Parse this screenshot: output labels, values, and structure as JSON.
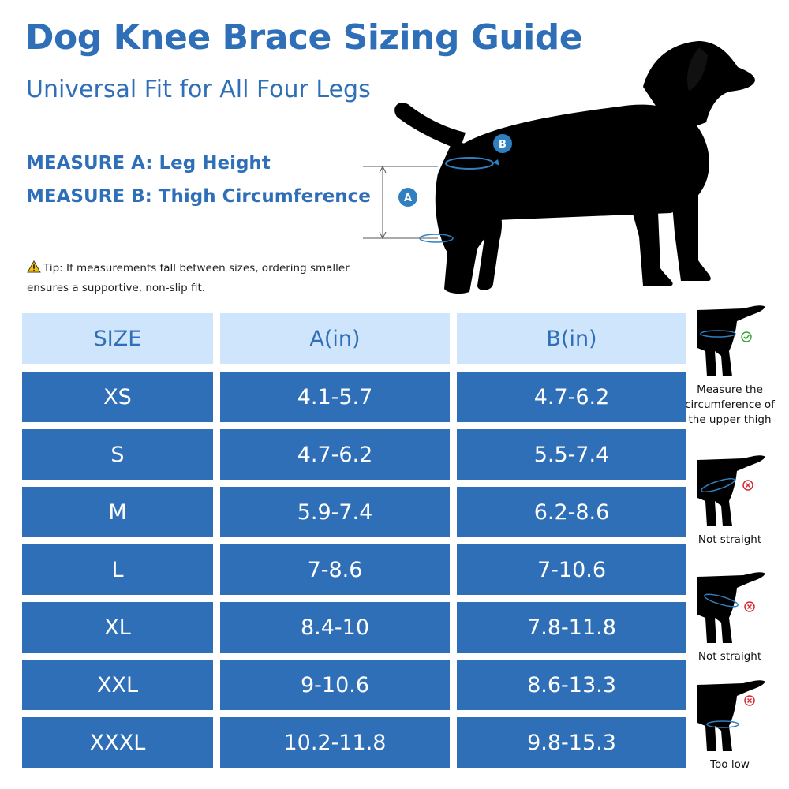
{
  "header": {
    "title": "Dog Knee Brace Sizing Guide",
    "subtitle": "Universal Fit for All Four Legs",
    "measure_a": "MEASURE A: Leg Height",
    "measure_b": "MEASURE B: Thigh Circumference"
  },
  "diagram": {
    "marker_a": "A",
    "marker_b": "B"
  },
  "tip": {
    "label": "Tip:",
    "text": " If measurements fall between sizes, ordering smaller ensures a supportive, non-slip fit."
  },
  "table": {
    "headers": [
      "SIZE",
      "A(in)",
      "B(in)"
    ],
    "rows": [
      {
        "size": "XS",
        "a": "4.1-5.7",
        "b": "4.7-6.2"
      },
      {
        "size": "S",
        "a": "4.7-6.2",
        "b": "5.5-7.4"
      },
      {
        "size": "M",
        "a": "5.9-7.4",
        "b": "6.2-8.6"
      },
      {
        "size": "L",
        "a": "7-8.6",
        "b": "7-10.6"
      },
      {
        "size": "XL",
        "a": "8.4-10",
        "b": "7.8-11.8"
      },
      {
        "size": "XXL",
        "a": "9-10.6",
        "b": "8.6-13.3"
      },
      {
        "size": "XXXL",
        "a": "10.2-11.8",
        "b": "9.8-15.3"
      }
    ]
  },
  "examples": [
    {
      "caption": "Measure the circumference of the upper thigh",
      "status": "correct"
    },
    {
      "caption": "Not straight",
      "status": "wrong"
    },
    {
      "caption": "Not straight",
      "status": "wrong"
    },
    {
      "caption": "Too low",
      "status": "wrong"
    }
  ],
  "colors": {
    "brand_blue": "#2f6fb8",
    "header_cell": "#cfe5fb",
    "check_green": "#3ea33e",
    "cross_red": "#d9262f",
    "warning_yellow": "#f5c000"
  }
}
